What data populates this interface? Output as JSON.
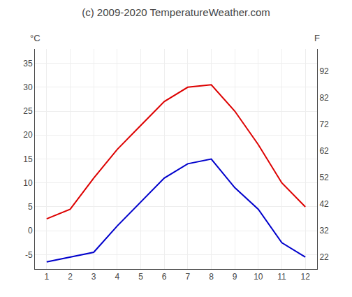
{
  "chart_data": {
    "type": "line",
    "title": "(c) 2009-2020 TemperatureWeather.com",
    "x": [
      1,
      2,
      3,
      4,
      5,
      6,
      7,
      8,
      9,
      10,
      11,
      12
    ],
    "series": [
      {
        "color": "#dd0000",
        "values": [
          2.5,
          4.5,
          11.0,
          17.0,
          22.0,
          27.0,
          30.0,
          30.5,
          25.0,
          18.0,
          10.0,
          5.0
        ]
      },
      {
        "color": "#0000cc",
        "values": [
          -6.5,
          -5.5,
          -4.5,
          1.0,
          6.0,
          11.0,
          14.0,
          15.0,
          9.0,
          4.5,
          -2.5,
          -5.5
        ]
      }
    ],
    "xlim": [
      0.5,
      12.5
    ],
    "xticks": [
      1,
      2,
      3,
      4,
      5,
      6,
      7,
      8,
      9,
      10,
      11,
      12
    ],
    "ylim": [
      -8,
      38
    ],
    "yticks": [
      -5,
      0,
      5,
      10,
      15,
      20,
      25,
      30,
      35
    ],
    "y2lim": [
      17.6,
      100.4
    ],
    "y2ticks": [
      22,
      32,
      42,
      52,
      62,
      72,
      82,
      92
    ],
    "ylabel": "°C",
    "y2label": "F",
    "grid": true
  }
}
